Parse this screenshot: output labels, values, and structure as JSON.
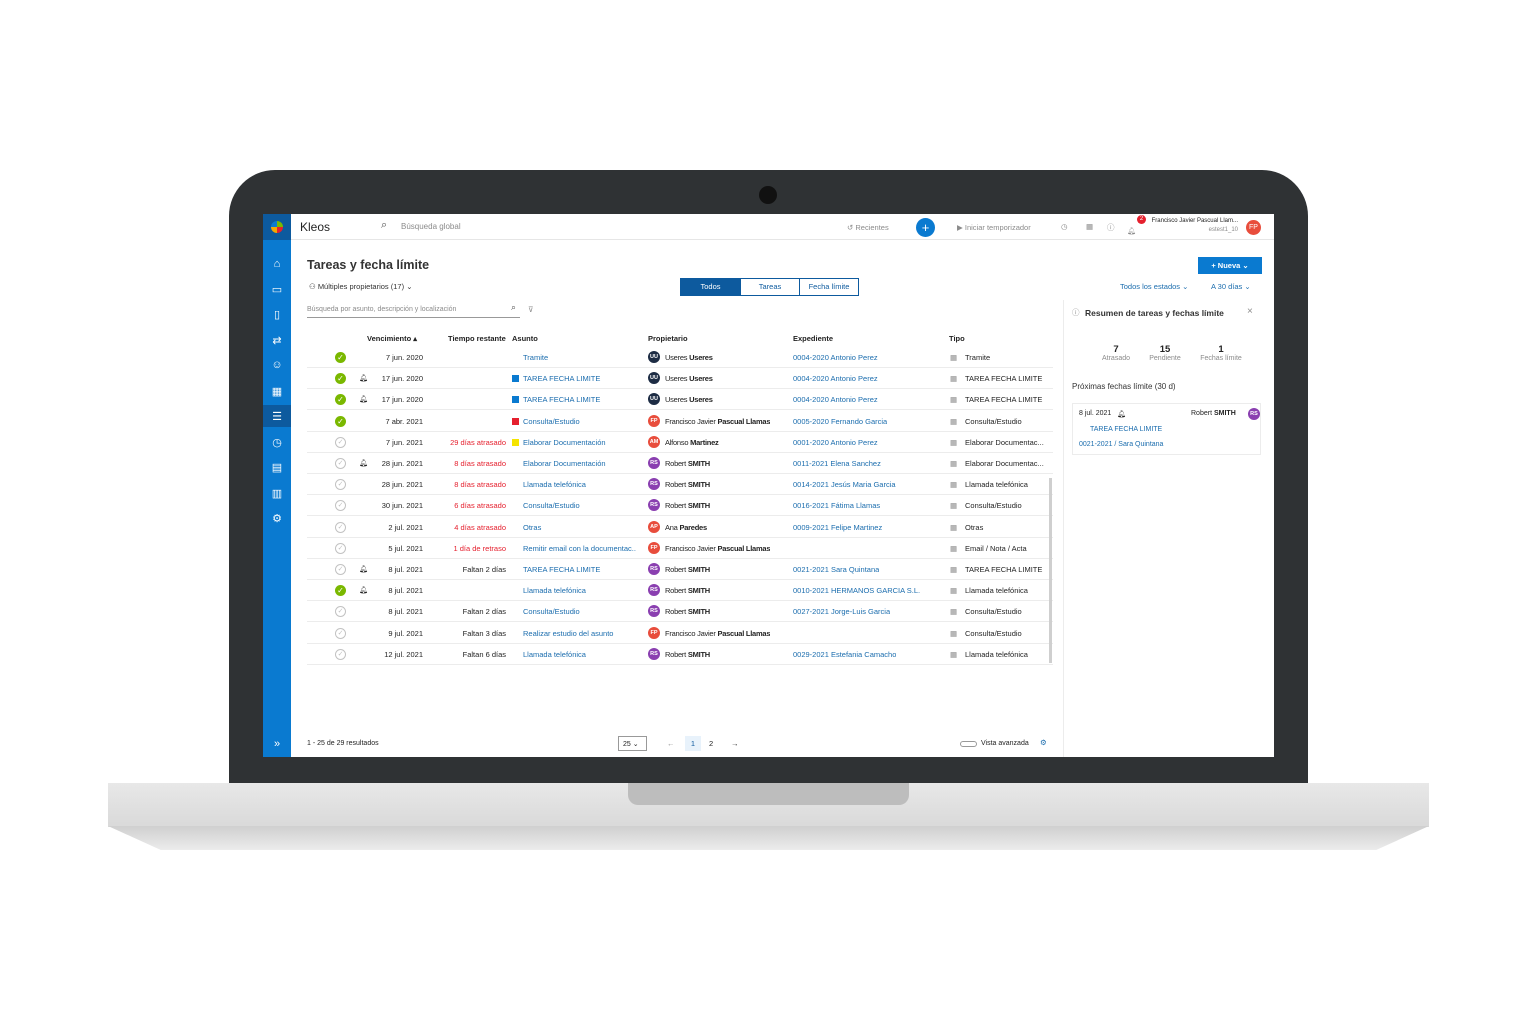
{
  "app": {
    "name": "Kleos",
    "search_placeholder": "Búsqueda global",
    "recent": "Recientes",
    "timer": "Iniciar temporizador",
    "notif_count": "2",
    "user_name": "Francisco Javier Pascual Llam...",
    "user_sub": "estest1_10",
    "user_initials": "FP"
  },
  "page": {
    "title": "Tareas y fecha límite",
    "owners": "Múltiples propietarios (17)",
    "new_button": "Nueva",
    "tabs": [
      "Todos",
      "Tareas",
      "Fecha límite"
    ],
    "status_filter": "Todos los estados",
    "range_filter": "A 30 días",
    "search_placeholder": "Búsqueda por asunto, descripción y localización"
  },
  "table": {
    "headers": {
      "due": "Vencimiento",
      "remaining": "Tiempo restante",
      "subject": "Asunto",
      "owner": "Propietario",
      "file": "Expediente",
      "type": "Tipo"
    },
    "rows": [
      {
        "done": true,
        "bell": false,
        "due": "7 jun. 2020",
        "remaining": "",
        "overdue": false,
        "color": "",
        "subject": "Tramite",
        "initials": "UU",
        "avatar": "#1d2c44",
        "owner_first": "Useres",
        "owner_last": "Useres",
        "file": "0004-2020 Antonio Perez",
        "type": "Tramite"
      },
      {
        "done": true,
        "bell": true,
        "due": "17 jun. 2020",
        "remaining": "",
        "overdue": false,
        "color": "#0a7ad0",
        "subject": "TAREA FECHA LIMITE",
        "initials": "UU",
        "avatar": "#1d2c44",
        "owner_first": "Useres",
        "owner_last": "Useres",
        "file": "0004-2020 Antonio Perez",
        "type": "TAREA FECHA LIMITE"
      },
      {
        "done": true,
        "bell": true,
        "due": "17 jun. 2020",
        "remaining": "",
        "overdue": false,
        "color": "#0a7ad0",
        "subject": "TAREA FECHA LIMITE",
        "initials": "UU",
        "avatar": "#1d2c44",
        "owner_first": "Useres",
        "owner_last": "Useres",
        "file": "0004-2020 Antonio Perez",
        "type": "TAREA FECHA LIMITE"
      },
      {
        "done": true,
        "bell": false,
        "due": "7 abr. 2021",
        "remaining": "",
        "overdue": false,
        "color": "#e5202e",
        "subject": "Consulta/Estudio",
        "initials": "FP",
        "avatar": "#e84d3c",
        "owner_first": "Francisco Javier",
        "owner_last": "Pascual Llamas",
        "file": "0005-2020 Fernando Garcia",
        "type": "Consulta/Estudio"
      },
      {
        "done": false,
        "bell": false,
        "due": "7 jun. 2021",
        "remaining": "29 días atrasado",
        "overdue": true,
        "color": "#f5e400",
        "subject": "Elaborar Documentación",
        "initials": "AM",
        "avatar": "#e84d3c",
        "owner_first": "Alfonso",
        "owner_last": "Martinez",
        "file": "0001-2020 Antonio Perez",
        "type": "Elaborar Documentac..."
      },
      {
        "done": false,
        "bell": true,
        "due": "28 jun. 2021",
        "remaining": "8 días atrasado",
        "overdue": true,
        "color": "",
        "subject": "Elaborar Documentación",
        "initials": "RS",
        "avatar": "#8a3fb0",
        "owner_first": "Robert",
        "owner_last": "SMITH",
        "file": "0011-2021 Elena Sanchez",
        "type": "Elaborar Documentac..."
      },
      {
        "done": false,
        "bell": false,
        "due": "28 jun. 2021",
        "remaining": "8 días atrasado",
        "overdue": true,
        "color": "",
        "subject": "Llamada telefónica",
        "initials": "RS",
        "avatar": "#8a3fb0",
        "owner_first": "Robert",
        "owner_last": "SMITH",
        "file": "0014-2021 Jesús Maria Garcia",
        "type": "Llamada telefónica"
      },
      {
        "done": false,
        "bell": false,
        "due": "30 jun. 2021",
        "remaining": "6 días atrasado",
        "overdue": true,
        "color": "",
        "subject": "Consulta/Estudio",
        "initials": "RS",
        "avatar": "#8a3fb0",
        "owner_first": "Robert",
        "owner_last": "SMITH",
        "file": "0016-2021 Fátima Llamas",
        "type": "Consulta/Estudio"
      },
      {
        "done": false,
        "bell": false,
        "due": "2 jul. 2021",
        "remaining": "4 días atrasado",
        "overdue": true,
        "color": "",
        "subject": "Otras",
        "initials": "AP",
        "avatar": "#e84d3c",
        "owner_first": "Ana",
        "owner_last": "Paredes",
        "file": "0009-2021 Felipe Martinez",
        "type": "Otras"
      },
      {
        "done": false,
        "bell": false,
        "due": "5 jul. 2021",
        "remaining": "1 día de retraso",
        "overdue": true,
        "color": "",
        "subject": "Remitir email con la documentac..",
        "initials": "FP",
        "avatar": "#e84d3c",
        "owner_first": "Francisco Javier",
        "owner_last": "Pascual Llamas",
        "file": "",
        "type": "Email / Nota / Acta"
      },
      {
        "done": false,
        "bell": true,
        "due": "8 jul. 2021",
        "remaining": "Faltan 2 días",
        "overdue": false,
        "color": "",
        "subject": "TAREA FECHA LIMITE",
        "initials": "RS",
        "avatar": "#8a3fb0",
        "owner_first": "Robert",
        "owner_last": "SMITH",
        "file": "0021-2021 Sara Quintana",
        "type": "TAREA FECHA LIMITE"
      },
      {
        "done": true,
        "bell": true,
        "due": "8 jul. 2021",
        "remaining": "",
        "overdue": false,
        "color": "",
        "subject": "Llamada telefónica",
        "initials": "RS",
        "avatar": "#8a3fb0",
        "owner_first": "Robert",
        "owner_last": "SMITH",
        "file": "0010-2021 HERMANOS GARCIA S.L.",
        "type": "Llamada telefónica"
      },
      {
        "done": false,
        "bell": false,
        "due": "8 jul. 2021",
        "remaining": "Faltan 2 días",
        "overdue": false,
        "color": "",
        "subject": "Consulta/Estudio",
        "initials": "RS",
        "avatar": "#8a3fb0",
        "owner_first": "Robert",
        "owner_last": "SMITH",
        "file": "0027-2021 Jorge-Luis Garcia",
        "type": "Consulta/Estudio"
      },
      {
        "done": false,
        "bell": false,
        "due": "9 jul. 2021",
        "remaining": "Faltan 3 días",
        "overdue": false,
        "color": "",
        "subject": "Realizar estudio del asunto",
        "initials": "FP",
        "avatar": "#e84d3c",
        "owner_first": "Francisco Javier",
        "owner_last": "Pascual Llamas",
        "file": "",
        "type": "Consulta/Estudio"
      },
      {
        "done": false,
        "bell": false,
        "due": "12 jul. 2021",
        "remaining": "Faltan 6 días",
        "overdue": false,
        "color": "",
        "subject": "Llamada telefónica",
        "initials": "RS",
        "avatar": "#8a3fb0",
        "owner_first": "Robert",
        "owner_last": "SMITH",
        "file": "0029-2021 Estefania Camacho",
        "type": "Llamada telefónica"
      }
    ]
  },
  "footer": {
    "results": "1 - 25 de 29 resultados",
    "page_size": "25",
    "pages": [
      "1",
      "2"
    ],
    "advanced": "Vista avanzada"
  },
  "summary": {
    "title": "Resumen de tareas y fechas límite",
    "stats": [
      {
        "value": "7",
        "label": "Atrasado"
      },
      {
        "value": "15",
        "label": "Pendiente"
      },
      {
        "value": "1",
        "label": "Fechas límite"
      }
    ],
    "upcoming_title": "Próximas fechas límite (30 d)",
    "card": {
      "date": "8 jul. 2021",
      "owner_first": "Robert",
      "owner_last": "SMITH",
      "initials": "RS",
      "subject": "TAREA FECHA LIMITE",
      "file": "0021-2021 / Sara Quintana"
    }
  }
}
